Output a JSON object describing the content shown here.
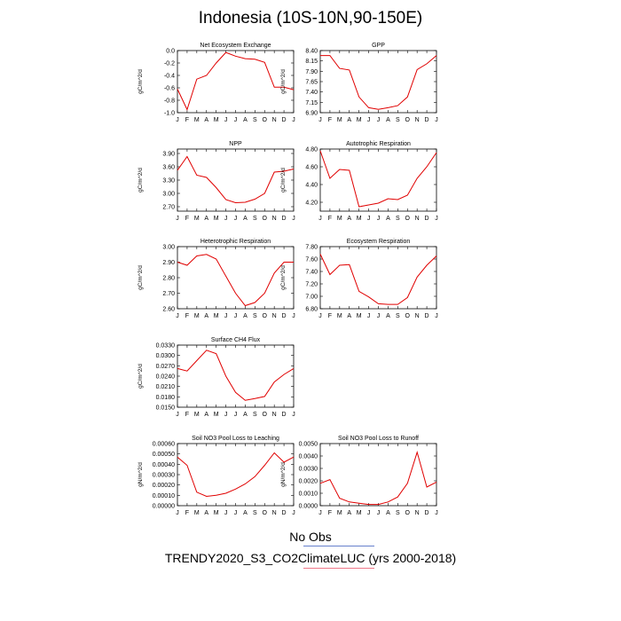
{
  "title": "Indonesia (10S-10N,90-150E)",
  "legend": {
    "line1": "No Obs",
    "line2": "TRENDY2020_S3_CO2ClimateLUC (yrs 2000-2018)",
    "line1_color": "#6680cc",
    "line2_color": "#ee7788"
  },
  "series_color": "#e00000",
  "chart_data": [
    {
      "type": "line",
      "title": "Net Ecosystem Exchange",
      "ylabel": "gC/m^2/d",
      "categories": [
        "J",
        "F",
        "M",
        "A",
        "M",
        "J",
        "J",
        "A",
        "S",
        "O",
        "N",
        "D",
        "J"
      ],
      "ylim": [
        -1.0,
        0.0
      ],
      "yticks": [
        -1.0,
        -0.8,
        -0.6,
        -0.4,
        -0.2,
        0.0
      ],
      "ytick_labels": [
        "-1.0",
        "-0.8",
        "-0.6",
        "-0.4",
        "-0.2",
        "0.0"
      ],
      "values": [
        -0.62,
        -0.95,
        -0.46,
        -0.4,
        -0.2,
        -0.03,
        -0.09,
        -0.13,
        -0.14,
        -0.19,
        -0.59,
        -0.59,
        -0.63
      ]
    },
    {
      "type": "line",
      "title": "GPP",
      "ylabel": "gC/m^2/d",
      "categories": [
        "J",
        "F",
        "M",
        "A",
        "M",
        "J",
        "J",
        "A",
        "S",
        "O",
        "N",
        "D",
        "J"
      ],
      "ylim": [
        6.9,
        8.4
      ],
      "yticks": [
        6.9,
        7.15,
        7.4,
        7.65,
        7.9,
        8.15,
        8.4
      ],
      "ytick_labels": [
        "6.90",
        "7.15",
        "7.40",
        "7.65",
        "7.90",
        "8.15",
        "8.40"
      ],
      "values": [
        8.28,
        8.28,
        7.97,
        7.93,
        7.28,
        7.02,
        6.98,
        7.02,
        7.07,
        7.28,
        7.94,
        8.08,
        8.28
      ]
    },
    {
      "type": "line",
      "title": "NPP",
      "ylabel": "gC/m^2/d",
      "categories": [
        "J",
        "F",
        "M",
        "A",
        "M",
        "J",
        "J",
        "A",
        "S",
        "O",
        "N",
        "D",
        "J"
      ],
      "ylim": [
        2.6,
        4.0
      ],
      "yticks": [
        2.7,
        3.0,
        3.3,
        3.6,
        3.9
      ],
      "ytick_labels": [
        "2.70",
        "3.00",
        "3.30",
        "3.60",
        "3.90"
      ],
      "values": [
        3.52,
        3.83,
        3.41,
        3.36,
        3.13,
        2.86,
        2.79,
        2.8,
        2.87,
        3.0,
        3.48,
        3.5,
        3.55
      ]
    },
    {
      "type": "line",
      "title": "Autotrophic Respiration",
      "ylabel": "gC/m^2/d",
      "categories": [
        "J",
        "F",
        "M",
        "A",
        "M",
        "J",
        "J",
        "A",
        "S",
        "O",
        "N",
        "D",
        "J"
      ],
      "ylim": [
        4.1,
        4.8
      ],
      "yticks": [
        4.2,
        4.4,
        4.6,
        4.8
      ],
      "ytick_labels": [
        "4.20",
        "4.40",
        "4.60",
        "4.80"
      ],
      "values": [
        4.78,
        4.47,
        4.57,
        4.56,
        4.15,
        4.17,
        4.19,
        4.24,
        4.23,
        4.28,
        4.47,
        4.6,
        4.76
      ]
    },
    {
      "type": "line",
      "title": "Heterotrophic Respiration",
      "ylabel": "gC/m^2/d",
      "categories": [
        "J",
        "F",
        "M",
        "A",
        "M",
        "J",
        "J",
        "A",
        "S",
        "O",
        "N",
        "D",
        "J"
      ],
      "ylim": [
        2.6,
        3.0
      ],
      "yticks": [
        2.6,
        2.7,
        2.8,
        2.9,
        3.0
      ],
      "ytick_labels": [
        "2.60",
        "2.70",
        "2.80",
        "2.90",
        "3.00"
      ],
      "values": [
        2.9,
        2.88,
        2.94,
        2.95,
        2.92,
        2.81,
        2.7,
        2.62,
        2.64,
        2.7,
        2.83,
        2.9,
        2.9
      ]
    },
    {
      "type": "line",
      "title": "Ecosystem Respiration",
      "ylabel": "gC/m^2/d",
      "categories": [
        "J",
        "F",
        "M",
        "A",
        "M",
        "J",
        "J",
        "A",
        "S",
        "O",
        "N",
        "D",
        "J"
      ],
      "ylim": [
        6.8,
        7.8
      ],
      "yticks": [
        6.8,
        7.0,
        7.2,
        7.4,
        7.6,
        7.8
      ],
      "ytick_labels": [
        "6.80",
        "7.00",
        "7.20",
        "7.40",
        "7.60",
        "7.80"
      ],
      "values": [
        7.68,
        7.35,
        7.5,
        7.51,
        7.08,
        6.99,
        6.88,
        6.87,
        6.87,
        6.98,
        7.31,
        7.5,
        7.65
      ]
    },
    {
      "type": "line",
      "title": "Surface CH4 Flux",
      "ylabel": "gC/m^2/d",
      "categories": [
        "J",
        "F",
        "M",
        "A",
        "M",
        "J",
        "J",
        "A",
        "S",
        "O",
        "N",
        "D",
        "J"
      ],
      "ylim": [
        0.015,
        0.033
      ],
      "yticks": [
        0.015,
        0.018,
        0.021,
        0.024,
        0.027,
        0.03,
        0.033
      ],
      "ytick_labels": [
        "0.0150",
        "0.0180",
        "0.0210",
        "0.0240",
        "0.0270",
        "0.0300",
        "0.0330"
      ],
      "values": [
        0.0262,
        0.0255,
        0.0285,
        0.0315,
        0.0305,
        0.024,
        0.0193,
        0.017,
        0.0175,
        0.0181,
        0.0223,
        0.0245,
        0.0262
      ]
    },
    {
      "type": "line",
      "title": "Soil NO3 Pool Loss to Leaching",
      "ylabel": "gN/m^2/d",
      "categories": [
        "J",
        "F",
        "M",
        "A",
        "M",
        "J",
        "J",
        "A",
        "S",
        "O",
        "N",
        "D",
        "J"
      ],
      "ylim": [
        0.0,
        0.0006
      ],
      "yticks": [
        0.0,
        0.0001,
        0.0002,
        0.0003,
        0.0004,
        0.0005,
        0.0006
      ],
      "ytick_labels": [
        "0.00000",
        "0.00010",
        "0.00020",
        "0.00030",
        "0.00040",
        "0.00050",
        "0.00060"
      ],
      "values": [
        0.00047,
        0.00039,
        0.00013,
        9e-05,
        0.0001,
        0.00012,
        0.00016,
        0.00021,
        0.00028,
        0.00039,
        0.00051,
        0.00042,
        0.00047
      ]
    },
    {
      "type": "line",
      "title": "Soil NO3 Pool Loss to Runoff",
      "ylabel": "gN/m^2/d",
      "categories": [
        "J",
        "F",
        "M",
        "A",
        "M",
        "J",
        "J",
        "A",
        "S",
        "O",
        "N",
        "D",
        "J"
      ],
      "ylim": [
        0.0,
        0.005
      ],
      "yticks": [
        0.0,
        0.001,
        0.002,
        0.003,
        0.004,
        0.005
      ],
      "ytick_labels": [
        "0.0000",
        "0.0010",
        "0.0020",
        "0.0030",
        "0.0040",
        "0.0050"
      ],
      "values": [
        0.0018,
        0.0021,
        0.0006,
        0.0003,
        0.0002,
        0.0001,
        0.0001,
        0.0003,
        0.0007,
        0.0018,
        0.0043,
        0.0015,
        0.0019
      ]
    }
  ]
}
